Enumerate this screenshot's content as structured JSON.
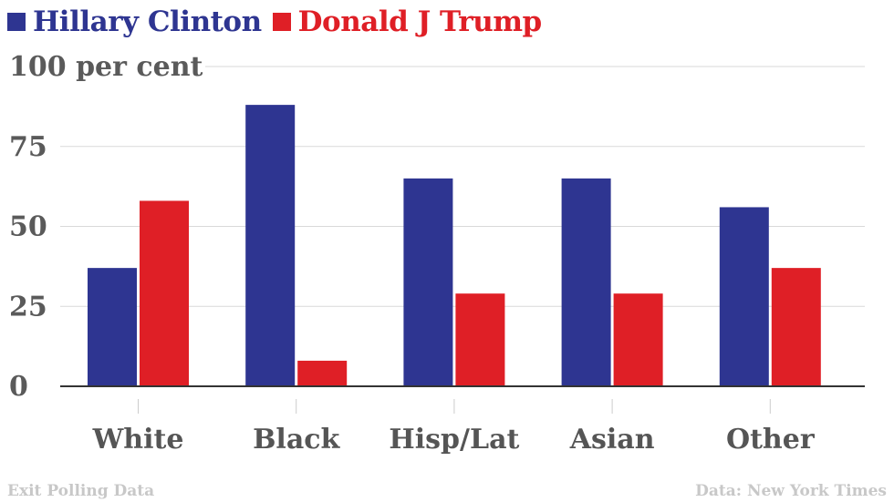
{
  "colors": {
    "clinton": "#2e3591",
    "trump": "#df1f26",
    "grid": "#d9d9d9",
    "axis": "#333333"
  },
  "legend": [
    {
      "label": "Hillary Clinton",
      "color": "#2e3591"
    },
    {
      "label": "Donald J Trump",
      "color": "#df1f26"
    }
  ],
  "footer": {
    "left": "Exit Polling Data",
    "right": "Data: New York Times"
  },
  "chart_data": {
    "type": "bar",
    "categories": [
      "White",
      "Black",
      "Hisp/Lat",
      "Asian",
      "Other"
    ],
    "series": [
      {
        "name": "Hillary Clinton",
        "values": [
          37,
          88,
          65,
          65,
          56
        ]
      },
      {
        "name": "Donald J Trump",
        "values": [
          58,
          8,
          29,
          29,
          37
        ]
      }
    ],
    "yticks": [
      "0",
      "25",
      "50",
      "75",
      "100 per cent"
    ],
    "ytick_values": [
      0,
      25,
      50,
      75,
      100
    ],
    "ylim": [
      0,
      100
    ],
    "grid": true,
    "legend_position": "top-left"
  }
}
